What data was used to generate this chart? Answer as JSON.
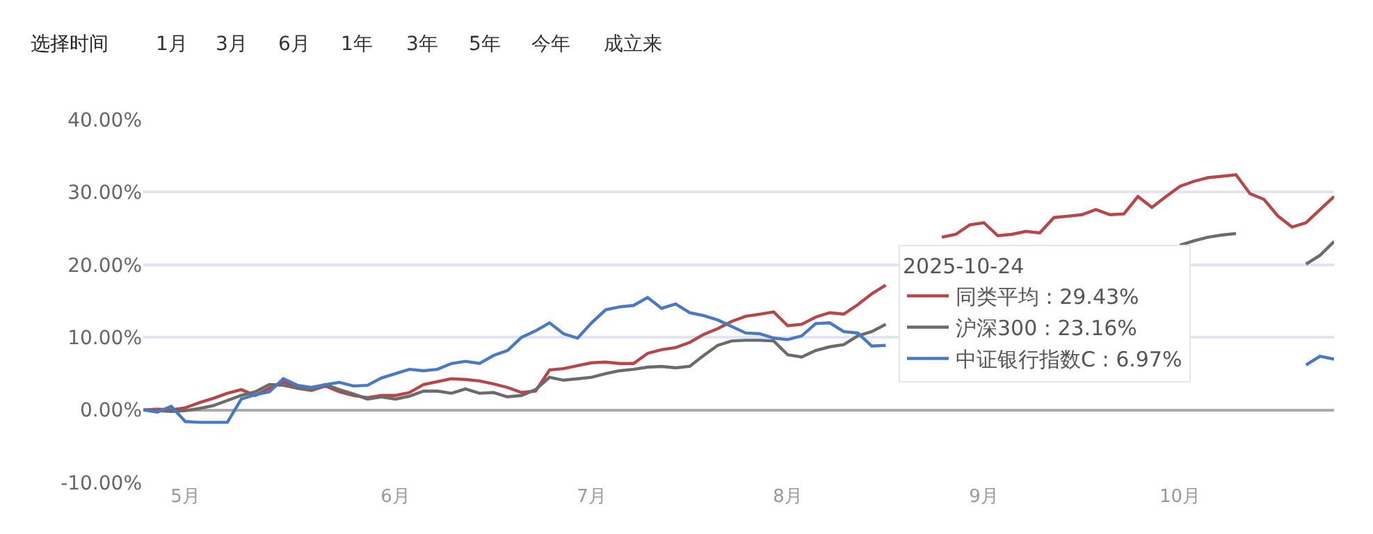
{
  "chart_data": {
    "type": "line",
    "categories": [
      null,
      null,
      null,
      "5月",
      null,
      null,
      null,
      null,
      null,
      null,
      null,
      null,
      null,
      null,
      null,
      null,
      null,
      null,
      "6月",
      null,
      null,
      null,
      null,
      null,
      null,
      null,
      null,
      null,
      null,
      null,
      null,
      null,
      "7月",
      null,
      null,
      null,
      null,
      null,
      null,
      null,
      null,
      null,
      null,
      null,
      null,
      null,
      "8月",
      null,
      null,
      null,
      null,
      null,
      null,
      null,
      null,
      null,
      null,
      null,
      null,
      null,
      "9月",
      null,
      null,
      null,
      null,
      null,
      null,
      null,
      null,
      null,
      null,
      null,
      null,
      null,
      "10月",
      null,
      null,
      null,
      null,
      null,
      null,
      null,
      null,
      null,
      null,
      null
    ],
    "series": [
      {
        "name": "同类平均 : 29.43%",
        "color": "#b5474b",
        "values": [
          0,
          0.1,
          0,
          0.3,
          1.0,
          1.6,
          2.3,
          2.8,
          2.0,
          3.0,
          3.9,
          3.0,
          2.7,
          3.3,
          2.5,
          2.0,
          1.7,
          2.0,
          2.0,
          2.4,
          3.5,
          3.9,
          4.3,
          4.2,
          4.0,
          3.6,
          3.1,
          2.4,
          2.6,
          5.5,
          5.7,
          6.1,
          6.5,
          6.6,
          6.4,
          6.4,
          7.8,
          8.3,
          8.6,
          9.3,
          10.4,
          11.2,
          12.2,
          12.9,
          13.2,
          13.5,
          11.6,
          11.8,
          12.8,
          13.4,
          13.2,
          14.5,
          16.0,
          17.2,
          null,
          null,
          null,
          23.8,
          24.2,
          25.5,
          25.8,
          24.0,
          24.2,
          24.6,
          24.4,
          26.5,
          26.7,
          26.9,
          27.6,
          26.9,
          27.0,
          29.4,
          27.9,
          29.4,
          30.8,
          31.5,
          32.0,
          32.2,
          32.4,
          29.8,
          29.0,
          26.7,
          25.2,
          25.8,
          27.6,
          29.4
        ]
      },
      {
        "name": "沪深300 : 23.16%",
        "color": "#6b6b6b",
        "values": [
          0,
          -0.1,
          -0.2,
          -0.1,
          0.2,
          0.6,
          1.3,
          2.0,
          2.5,
          3.5,
          3.4,
          3.0,
          2.8,
          3.5,
          2.8,
          2.2,
          1.5,
          1.8,
          1.5,
          1.9,
          2.6,
          2.6,
          2.3,
          2.9,
          2.3,
          2.4,
          1.8,
          2.0,
          2.8,
          4.5,
          4.1,
          4.3,
          4.5,
          5.0,
          5.4,
          5.6,
          5.9,
          6.0,
          5.8,
          6.0,
          7.5,
          8.9,
          9.5,
          9.6,
          9.6,
          9.5,
          7.6,
          7.3,
          8.2,
          8.7,
          9.0,
          10.2,
          10.8,
          11.8,
          null,
          null,
          null,
          null,
          null,
          null,
          null,
          null,
          null,
          null,
          null,
          null,
          null,
          null,
          null,
          null,
          null,
          null,
          null,
          null,
          22.7,
          23.3,
          23.8,
          24.1,
          24.3,
          null,
          null,
          null,
          null,
          20.1,
          21.3,
          23.2
        ]
      },
      {
        "name": "中证银行指数C : 6.97%",
        "color": "#4a78c2",
        "values": [
          0,
          -0.3,
          0.5,
          -1.6,
          -1.7,
          -1.7,
          -1.7,
          1.5,
          2.1,
          2.5,
          4.3,
          3.4,
          3.1,
          3.5,
          3.8,
          3.3,
          3.4,
          4.4,
          5.0,
          5.6,
          5.4,
          5.6,
          6.4,
          6.7,
          6.4,
          7.5,
          8.2,
          10.0,
          10.9,
          12.0,
          10.5,
          9.9,
          12.0,
          13.8,
          14.2,
          14.4,
          15.5,
          14.0,
          14.6,
          13.4,
          13.0,
          12.4,
          11.5,
          10.6,
          10.5,
          9.9,
          9.7,
          10.2,
          11.9,
          12.0,
          10.8,
          10.6,
          8.8,
          8.9,
          null,
          null,
          null,
          null,
          null,
          null,
          null,
          null,
          null,
          null,
          null,
          null,
          null,
          null,
          null,
          null,
          null,
          null,
          null,
          null,
          null,
          null,
          null,
          null,
          null,
          null,
          null,
          null,
          null,
          6.2,
          7.4,
          7.0
        ]
      }
    ],
    "ylim": [
      -10,
      40
    ],
    "yticks": [
      {
        "value": -10,
        "label": "-10.00%"
      },
      {
        "value": 0,
        "label": "0.00%"
      },
      {
        "value": 10,
        "label": "10.00%"
      },
      {
        "value": 20,
        "label": "20.00%"
      },
      {
        "value": 30,
        "label": "30.00%"
      },
      {
        "value": 40,
        "label": "40.00%"
      }
    ],
    "grid": "y",
    "line_style": "solid",
    "marker": "none",
    "legend": "right",
    "legend_title": "2025-10-24",
    "annotations": [
      "选择时间",
      "1月",
      "3月",
      "6月",
      "1年",
      "3年",
      "5年",
      "今年",
      "成立来"
    ]
  }
}
